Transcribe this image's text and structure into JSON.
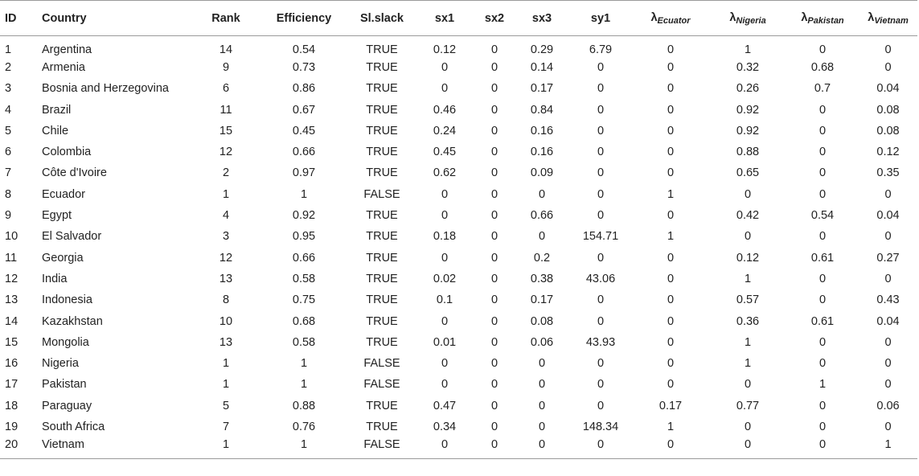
{
  "columns": [
    {
      "key": "id",
      "label": "ID"
    },
    {
      "key": "country",
      "label": "Country"
    },
    {
      "key": "rank",
      "label": "Rank"
    },
    {
      "key": "efficiency",
      "label": "Efficiency"
    },
    {
      "key": "slslack",
      "label": "Sl.slack"
    },
    {
      "key": "sx1",
      "label": "sx1"
    },
    {
      "key": "sx2",
      "label": "sx2"
    },
    {
      "key": "sx3",
      "label": "sx3"
    },
    {
      "key": "sy1",
      "label": "sy1"
    },
    {
      "key": "l_ecuator",
      "label": "λ",
      "sub": "Ecuator"
    },
    {
      "key": "l_nigeria",
      "label": "λ",
      "sub": "Nigeria"
    },
    {
      "key": "l_pakistan",
      "label": "λ",
      "sub": "Pakistan"
    },
    {
      "key": "l_vietnam",
      "label": "λ",
      "sub": "Vietnam"
    }
  ],
  "rows": [
    {
      "id": "1",
      "country": "Argentina",
      "rank": "14",
      "efficiency": "0.54",
      "slslack": "TRUE",
      "sx1": "0.12",
      "sx2": "0",
      "sx3": "0.29",
      "sy1": "6.79",
      "l_ecuator": "0",
      "l_nigeria": "1",
      "l_pakistan": "0",
      "l_vietnam": "0"
    },
    {
      "id": "2",
      "country": "Armenia",
      "rank": "9",
      "efficiency": "0.73",
      "slslack": "TRUE",
      "sx1": "0",
      "sx2": "0",
      "sx3": "0.14",
      "sy1": "0",
      "l_ecuator": "0",
      "l_nigeria": "0.32",
      "l_pakistan": "0.68",
      "l_vietnam": "0"
    },
    {
      "id": "3",
      "country": "Bosnia and Herzegovina",
      "rank": "6",
      "efficiency": "0.86",
      "slslack": "TRUE",
      "sx1": "0",
      "sx2": "0",
      "sx3": "0.17",
      "sy1": "0",
      "l_ecuator": "0",
      "l_nigeria": "0.26",
      "l_pakistan": "0.7",
      "l_vietnam": "0.04"
    },
    {
      "id": "4",
      "country": "Brazil",
      "rank": "11",
      "efficiency": "0.67",
      "slslack": "TRUE",
      "sx1": "0.46",
      "sx2": "0",
      "sx3": "0.84",
      "sy1": "0",
      "l_ecuator": "0",
      "l_nigeria": "0.92",
      "l_pakistan": "0",
      "l_vietnam": "0.08"
    },
    {
      "id": "5",
      "country": "Chile",
      "rank": "15",
      "efficiency": "0.45",
      "slslack": "TRUE",
      "sx1": "0.24",
      "sx2": "0",
      "sx3": "0.16",
      "sy1": "0",
      "l_ecuator": "0",
      "l_nigeria": "0.92",
      "l_pakistan": "0",
      "l_vietnam": "0.08"
    },
    {
      "id": "6",
      "country": "Colombia",
      "rank": "12",
      "efficiency": "0.66",
      "slslack": "TRUE",
      "sx1": "0.45",
      "sx2": "0",
      "sx3": "0.16",
      "sy1": "0",
      "l_ecuator": "0",
      "l_nigeria": "0.88",
      "l_pakistan": "0",
      "l_vietnam": "0.12"
    },
    {
      "id": "7",
      "country": "Côte d'Ivoire",
      "rank": "2",
      "efficiency": "0.97",
      "slslack": "TRUE",
      "sx1": "0.62",
      "sx2": "0",
      "sx3": "0.09",
      "sy1": "0",
      "l_ecuator": "0",
      "l_nigeria": "0.65",
      "l_pakistan": "0",
      "l_vietnam": "0.35"
    },
    {
      "id": "8",
      "country": "Ecuador",
      "rank": "1",
      "efficiency": "1",
      "slslack": "FALSE",
      "sx1": "0",
      "sx2": "0",
      "sx3": "0",
      "sy1": "0",
      "l_ecuator": "1",
      "l_nigeria": "0",
      "l_pakistan": "0",
      "l_vietnam": "0"
    },
    {
      "id": "9",
      "country": "Egypt",
      "rank": "4",
      "efficiency": "0.92",
      "slslack": "TRUE",
      "sx1": "0",
      "sx2": "0",
      "sx3": "0.66",
      "sy1": "0",
      "l_ecuator": "0",
      "l_nigeria": "0.42",
      "l_pakistan": "0.54",
      "l_vietnam": "0.04"
    },
    {
      "id": "10",
      "country": "El Salvador",
      "rank": "3",
      "efficiency": "0.95",
      "slslack": "TRUE",
      "sx1": "0.18",
      "sx2": "0",
      "sx3": "0",
      "sy1": "154.71",
      "l_ecuator": "1",
      "l_nigeria": "0",
      "l_pakistan": "0",
      "l_vietnam": "0"
    },
    {
      "id": "11",
      "country": "Georgia",
      "rank": "12",
      "efficiency": "0.66",
      "slslack": "TRUE",
      "sx1": "0",
      "sx2": "0",
      "sx3": "0.2",
      "sy1": "0",
      "l_ecuator": "0",
      "l_nigeria": "0.12",
      "l_pakistan": "0.61",
      "l_vietnam": "0.27"
    },
    {
      "id": "12",
      "country": "India",
      "rank": "13",
      "efficiency": "0.58",
      "slslack": "TRUE",
      "sx1": "0.02",
      "sx2": "0",
      "sx3": "0.38",
      "sy1": "43.06",
      "l_ecuator": "0",
      "l_nigeria": "1",
      "l_pakistan": "0",
      "l_vietnam": "0"
    },
    {
      "id": "13",
      "country": "Indonesia",
      "rank": "8",
      "efficiency": "0.75",
      "slslack": "TRUE",
      "sx1": "0.1",
      "sx2": "0",
      "sx3": "0.17",
      "sy1": "0",
      "l_ecuator": "0",
      "l_nigeria": "0.57",
      "l_pakistan": "0",
      "l_vietnam": "0.43"
    },
    {
      "id": "14",
      "country": "Kazakhstan",
      "rank": "10",
      "efficiency": "0.68",
      "slslack": "TRUE",
      "sx1": "0",
      "sx2": "0",
      "sx3": "0.08",
      "sy1": "0",
      "l_ecuator": "0",
      "l_nigeria": "0.36",
      "l_pakistan": "0.61",
      "l_vietnam": "0.04"
    },
    {
      "id": "15",
      "country": "Mongolia",
      "rank": "13",
      "efficiency": "0.58",
      "slslack": "TRUE",
      "sx1": "0.01",
      "sx2": "0",
      "sx3": "0.06",
      "sy1": "43.93",
      "l_ecuator": "0",
      "l_nigeria": "1",
      "l_pakistan": "0",
      "l_vietnam": "0"
    },
    {
      "id": "16",
      "country": "Nigeria",
      "rank": "1",
      "efficiency": "1",
      "slslack": "FALSE",
      "sx1": "0",
      "sx2": "0",
      "sx3": "0",
      "sy1": "0",
      "l_ecuator": "0",
      "l_nigeria": "1",
      "l_pakistan": "0",
      "l_vietnam": "0"
    },
    {
      "id": "17",
      "country": "Pakistan",
      "rank": "1",
      "efficiency": "1",
      "slslack": "FALSE",
      "sx1": "0",
      "sx2": "0",
      "sx3": "0",
      "sy1": "0",
      "l_ecuator": "0",
      "l_nigeria": "0",
      "l_pakistan": "1",
      "l_vietnam": "0"
    },
    {
      "id": "18",
      "country": "Paraguay",
      "rank": "5",
      "efficiency": "0.88",
      "slslack": "TRUE",
      "sx1": "0.47",
      "sx2": "0",
      "sx3": "0",
      "sy1": "0",
      "l_ecuator": "0.17",
      "l_nigeria": "0.77",
      "l_pakistan": "0",
      "l_vietnam": "0.06"
    },
    {
      "id": "19",
      "country": "South Africa",
      "rank": "7",
      "efficiency": "0.76",
      "slslack": "TRUE",
      "sx1": "0.34",
      "sx2": "0",
      "sx3": "0",
      "sy1": "148.34",
      "l_ecuator": "1",
      "l_nigeria": "0",
      "l_pakistan": "0",
      "l_vietnam": "0"
    },
    {
      "id": "20",
      "country": "Vietnam",
      "rank": "1",
      "efficiency": "1",
      "slslack": "FALSE",
      "sx1": "0",
      "sx2": "0",
      "sx3": "0",
      "sy1": "0",
      "l_ecuator": "0",
      "l_nigeria": "0",
      "l_pakistan": "0",
      "l_vietnam": "1"
    }
  ]
}
